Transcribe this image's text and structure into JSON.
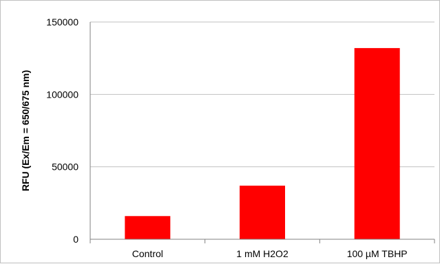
{
  "chart_data": {
    "type": "bar",
    "title": "",
    "xlabel": "",
    "ylabel": "RFU (Ex/Em = 650/675 nm)",
    "categories": [
      "Control",
      "1 mM H2O2",
      "100 µM TBHP"
    ],
    "values": [
      16000,
      37000,
      132000
    ],
    "ylim": [
      0,
      150000
    ],
    "yticks": [
      0,
      50000,
      100000,
      150000
    ],
    "ytick_labels": [
      "0",
      "50000",
      "100000",
      "150000"
    ],
    "grid": true,
    "legend": "none",
    "bar_color": "#ff0000",
    "gridline_color": "#c0c0c0",
    "axis_color": "#808080"
  }
}
